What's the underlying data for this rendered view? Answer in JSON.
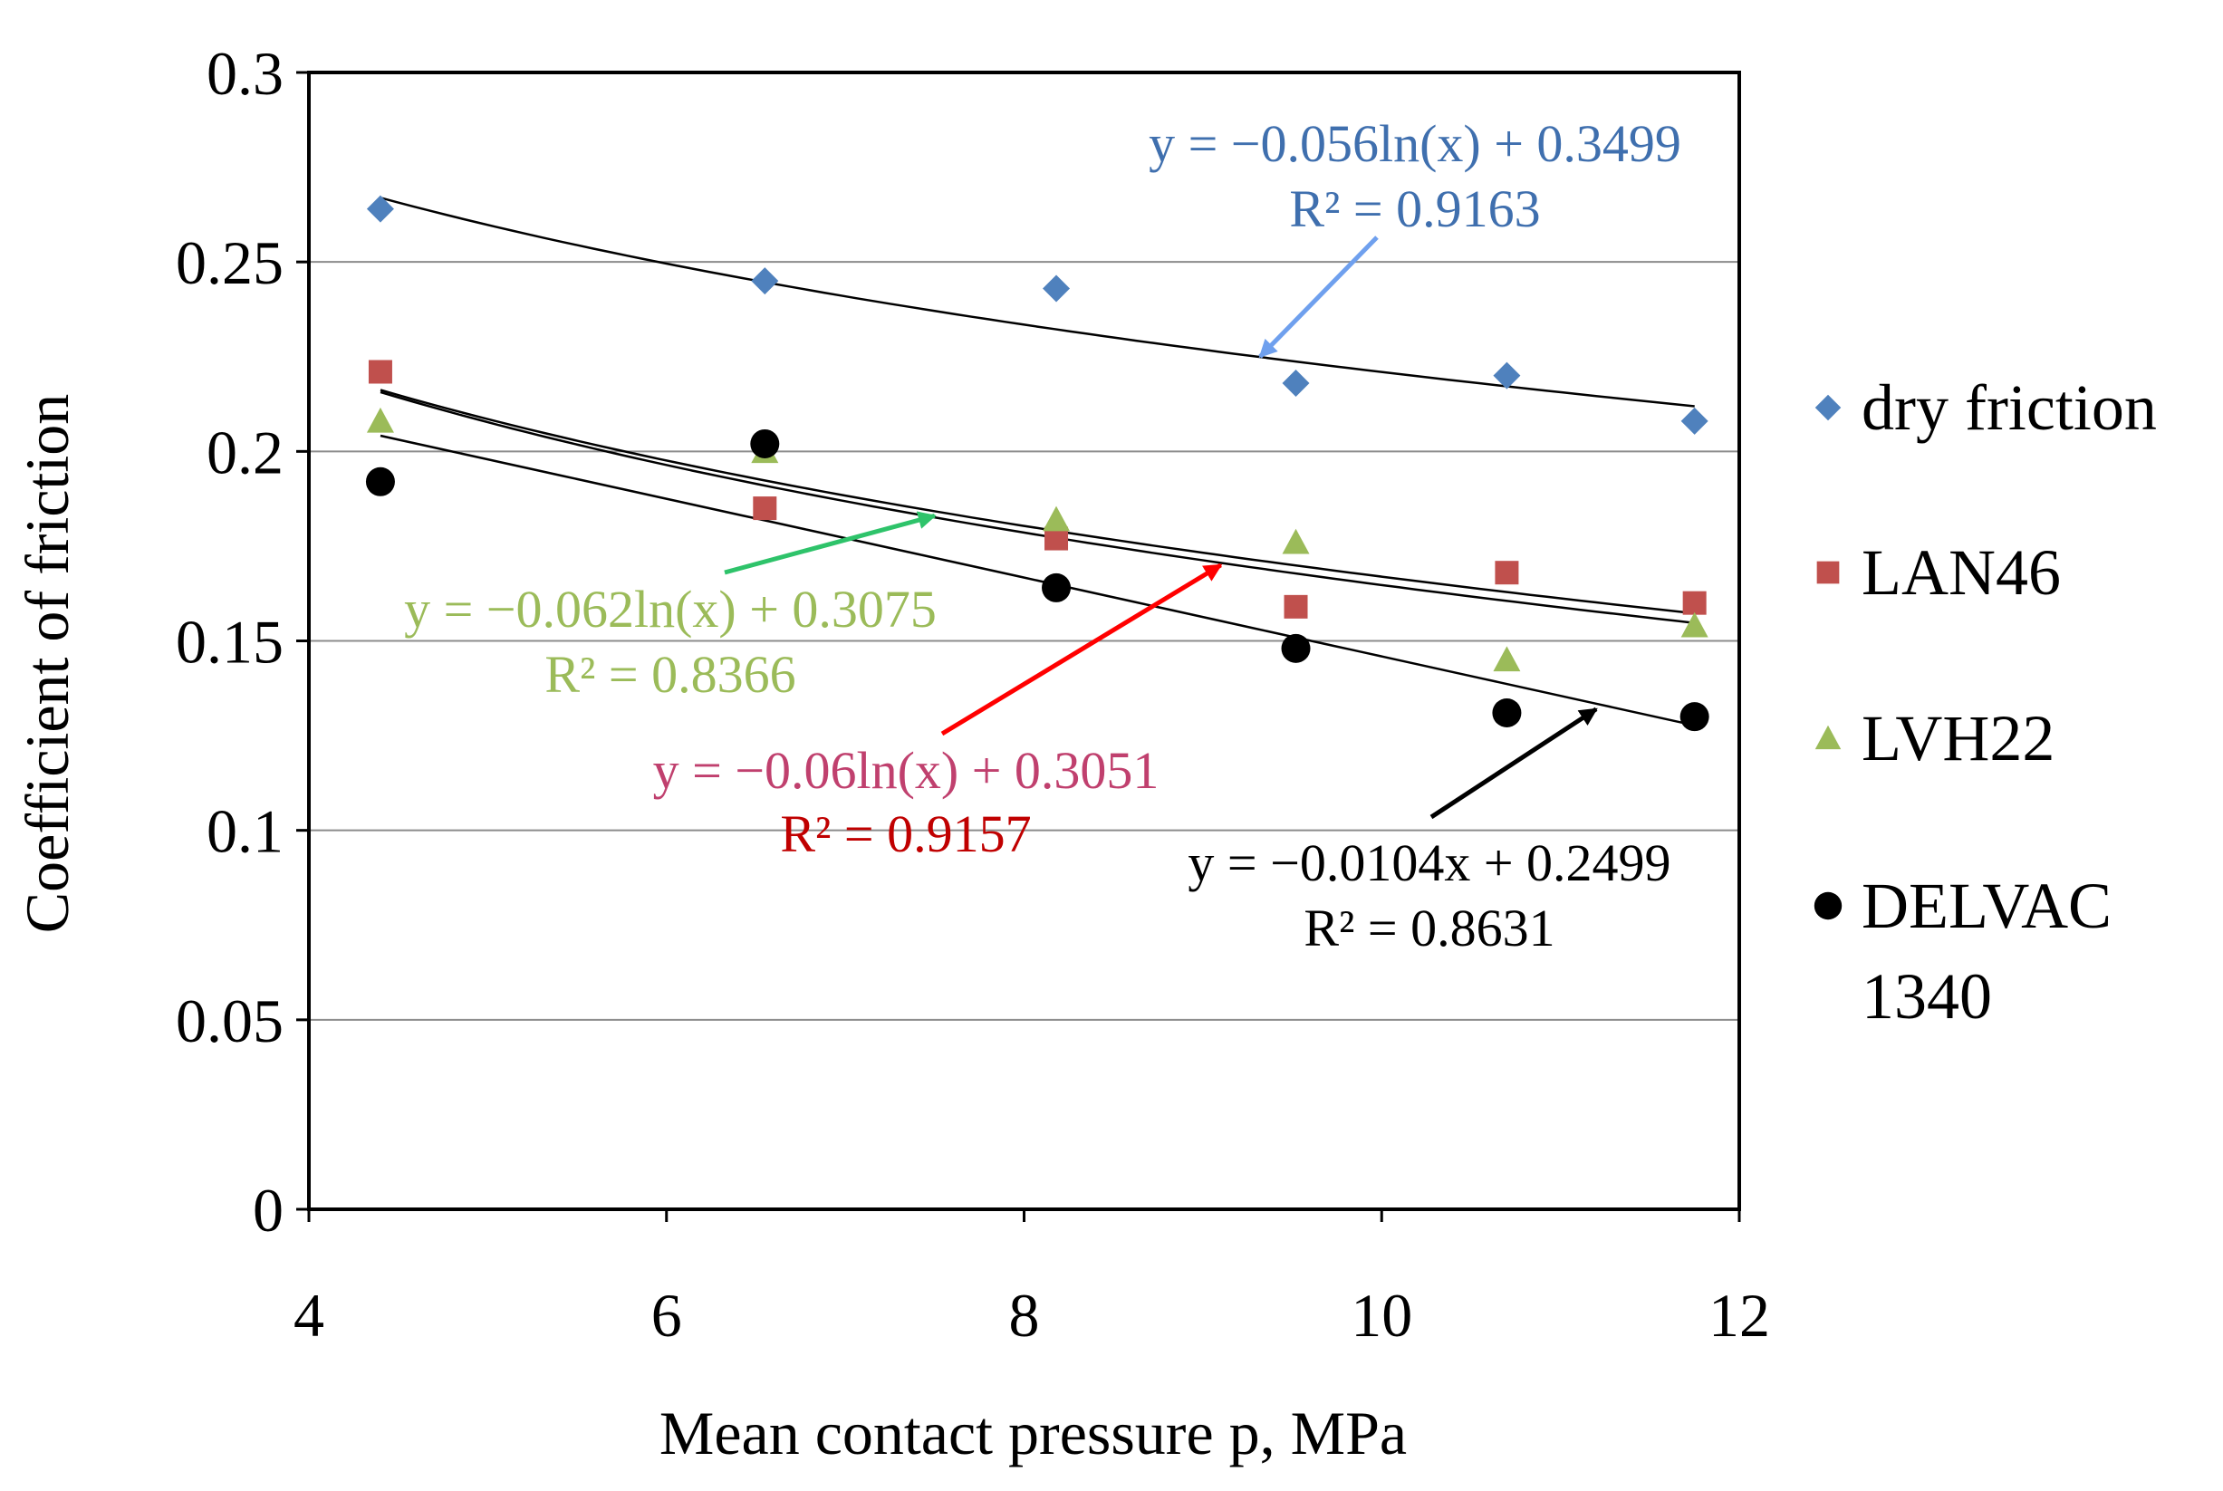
{
  "chart_data": {
    "type": "scatter",
    "xlabel": "Mean contact pressure p, MPa",
    "ylabel": "Coefficient of friction",
    "xlim": [
      4,
      12
    ],
    "ylim": [
      0,
      0.3
    ],
    "x_ticks": [
      4,
      6,
      8,
      10,
      12
    ],
    "x_tick_labels": [
      "4",
      "6",
      "8",
      "10",
      "12"
    ],
    "y_ticks": [
      0,
      0.05,
      0.1,
      0.15,
      0.2,
      0.25,
      0.3
    ],
    "y_tick_labels": [
      "0",
      "0.05",
      "0.1",
      "0.15",
      "0.2",
      "0.25",
      "0.3"
    ],
    "grid": "horizontal",
    "legend_position": "right",
    "series": [
      {
        "name": "dry friction",
        "marker": "diamond",
        "color": "#4f81bd",
        "x": [
          4.4,
          6.55,
          8.18,
          9.52,
          10.7,
          11.75
        ],
        "y": [
          0.264,
          0.245,
          0.243,
          0.218,
          0.22,
          0.208
        ],
        "trendline": {
          "kind": "log",
          "a": -0.056,
          "b": 0.3499
        }
      },
      {
        "name": "LAN46",
        "marker": "square",
        "color": "#c0504d",
        "x": [
          4.4,
          6.55,
          8.18,
          9.52,
          10.7,
          11.75
        ],
        "y": [
          0.221,
          0.185,
          0.177,
          0.159,
          0.168,
          0.16
        ],
        "trendline": {
          "kind": "log",
          "a": -0.06,
          "b": 0.3051
        }
      },
      {
        "name": "LVH22",
        "marker": "triangle",
        "color": "#9bbb59",
        "x": [
          4.4,
          6.55,
          8.18,
          9.52,
          10.7,
          11.75
        ],
        "y": [
          0.208,
          0.2,
          0.182,
          0.176,
          0.145,
          0.154
        ],
        "trendline": {
          "kind": "log",
          "a": -0.062,
          "b": 0.3075
        }
      },
      {
        "name": "DELVAC 1340",
        "legend_lines": [
          "DELVAC",
          "1340"
        ],
        "marker": "circle",
        "color": "#000000",
        "x": [
          4.4,
          6.55,
          8.18,
          9.52,
          10.7,
          11.75
        ],
        "y": [
          0.192,
          0.202,
          0.164,
          0.148,
          0.131,
          0.13
        ],
        "trendline": {
          "kind": "linear",
          "a": -0.0104,
          "b": 0.2499
        }
      }
    ],
    "annotations": [
      {
        "series": "dry friction",
        "text_color": "#3f6fae",
        "arrow_color": "#6fa0ee",
        "lines": [
          "y = −0.056ln(x) + 0.3499",
          "R² = 0.9163"
        ],
        "arrow_to": [
          9.32,
          0.225
        ]
      },
      {
        "series": "LVH22",
        "text_color": "#9bbb59",
        "arrow_color": "#2ec36a",
        "lines": [
          "y = −0.062ln(x) + 0.3075",
          "R² = 0.8366"
        ],
        "arrow_to": [
          7.5,
          0.183
        ]
      },
      {
        "series": "LAN46",
        "text_color": "#c0406e",
        "text_color_2": "#c00000",
        "arrow_color": "#ff0000",
        "lines": [
          "y = −0.06ln(x) + 0.3051",
          "R² = 0.9157"
        ],
        "arrow_to": [
          9.1,
          0.17
        ]
      },
      {
        "series": "DELVAC 1340",
        "text_color": "#000000",
        "arrow_color": "#000000",
        "lines": [
          "y = −0.0104x + 0.2499",
          "R² = 0.8631"
        ],
        "arrow_to": [
          11.2,
          0.132
        ]
      }
    ]
  }
}
